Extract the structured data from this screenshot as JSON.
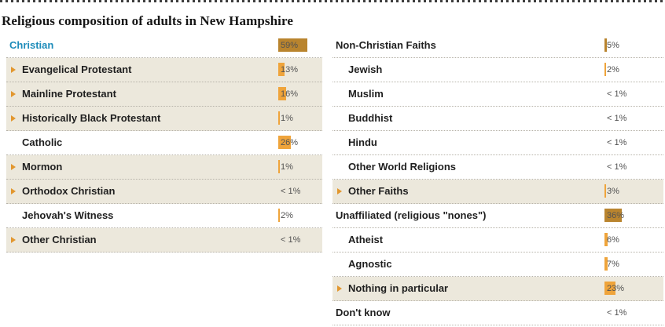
{
  "title": "Religious composition of adults in New Hampshire",
  "colors": {
    "bar_top_level": "#b9842e",
    "bar_sub_level": "#efa43b",
    "row_highlight": "#ece8dc",
    "link_blue": "#1e8cba",
    "triangle_orange": "#e2972f"
  },
  "columns": {
    "left": {
      "rows": [
        {
          "label": "Christian",
          "value": "59%",
          "pct": 59,
          "level": "top",
          "triangle": false,
          "highlight": false,
          "link": true
        },
        {
          "label": "Evangelical Protestant",
          "value": "13%",
          "pct": 13,
          "level": "sub",
          "triangle": true,
          "highlight": true,
          "link": false
        },
        {
          "label": "Mainline Protestant",
          "value": "16%",
          "pct": 16,
          "level": "sub",
          "triangle": true,
          "highlight": true,
          "link": false
        },
        {
          "label": "Historically Black Protestant",
          "value": "1%",
          "pct": 1,
          "level": "sub",
          "triangle": true,
          "highlight": true,
          "link": false
        },
        {
          "label": "Catholic",
          "value": "26%",
          "pct": 26,
          "level": "sub",
          "triangle": false,
          "highlight": false,
          "link": false
        },
        {
          "label": "Mormon",
          "value": "1%",
          "pct": 1,
          "level": "sub",
          "triangle": true,
          "highlight": true,
          "link": false
        },
        {
          "label": "Orthodox Christian",
          "value": "< 1%",
          "pct": 0,
          "level": "sub",
          "triangle": true,
          "highlight": true,
          "link": false
        },
        {
          "label": "Jehovah's Witness",
          "value": "2%",
          "pct": 2,
          "level": "sub",
          "triangle": false,
          "highlight": false,
          "link": false
        },
        {
          "label": "Other Christian",
          "value": "< 1%",
          "pct": 0,
          "level": "sub",
          "triangle": true,
          "highlight": true,
          "link": false
        }
      ]
    },
    "right": {
      "rows": [
        {
          "label": "Non-Christian Faiths",
          "value": "5%",
          "pct": 5,
          "level": "top",
          "triangle": false,
          "highlight": false,
          "link": false
        },
        {
          "label": "Jewish",
          "value": "2%",
          "pct": 2,
          "level": "sub",
          "triangle": false,
          "highlight": false,
          "link": false
        },
        {
          "label": "Muslim",
          "value": "< 1%",
          "pct": 0,
          "level": "sub",
          "triangle": false,
          "highlight": false,
          "link": false
        },
        {
          "label": "Buddhist",
          "value": "< 1%",
          "pct": 0,
          "level": "sub",
          "triangle": false,
          "highlight": false,
          "link": false
        },
        {
          "label": "Hindu",
          "value": "< 1%",
          "pct": 0,
          "level": "sub",
          "triangle": false,
          "highlight": false,
          "link": false
        },
        {
          "label": "Other World Religions",
          "value": "< 1%",
          "pct": 0,
          "level": "sub",
          "triangle": false,
          "highlight": false,
          "link": false
        },
        {
          "label": "Other Faiths",
          "value": "3%",
          "pct": 3,
          "level": "sub",
          "triangle": true,
          "highlight": true,
          "link": false
        },
        {
          "label": "Unaffiliated (religious \"nones\")",
          "value": "36%",
          "pct": 36,
          "level": "top",
          "triangle": false,
          "highlight": false,
          "link": false
        },
        {
          "label": "Atheist",
          "value": "6%",
          "pct": 6,
          "level": "sub",
          "triangle": false,
          "highlight": false,
          "link": false
        },
        {
          "label": "Agnostic",
          "value": "7%",
          "pct": 7,
          "level": "sub",
          "triangle": false,
          "highlight": false,
          "link": false
        },
        {
          "label": "Nothing in particular",
          "value": "23%",
          "pct": 23,
          "level": "sub",
          "triangle": true,
          "highlight": true,
          "link": false
        },
        {
          "label": "Don't know",
          "value": "< 1%",
          "pct": 0,
          "level": "top",
          "triangle": false,
          "highlight": false,
          "link": false
        }
      ]
    }
  },
  "chart_data": {
    "type": "bar",
    "title": "Religious composition of adults in New Hampshire",
    "orientation": "horizontal",
    "categories": [
      "Christian",
      "Evangelical Protestant",
      "Mainline Protestant",
      "Historically Black Protestant",
      "Catholic",
      "Mormon",
      "Orthodox Christian",
      "Jehovah's Witness",
      "Other Christian",
      "Non-Christian Faiths",
      "Jewish",
      "Muslim",
      "Buddhist",
      "Hindu",
      "Other World Religions",
      "Other Faiths",
      "Unaffiliated (religious \"nones\")",
      "Atheist",
      "Agnostic",
      "Nothing in particular",
      "Don't know"
    ],
    "values": [
      59,
      13,
      16,
      1,
      26,
      1,
      0.5,
      2,
      0.5,
      5,
      2,
      0.5,
      0.5,
      0.5,
      0.5,
      3,
      36,
      6,
      7,
      23,
      0.5
    ],
    "value_labels": [
      "59%",
      "13%",
      "16%",
      "1%",
      "26%",
      "1%",
      "< 1%",
      "2%",
      "< 1%",
      "5%",
      "2%",
      "< 1%",
      "< 1%",
      "< 1%",
      "< 1%",
      "3%",
      "36%",
      "6%",
      "7%",
      "23%",
      "< 1%"
    ],
    "xlim": [
      0,
      100
    ],
    "grid": false,
    "legend": false
  }
}
